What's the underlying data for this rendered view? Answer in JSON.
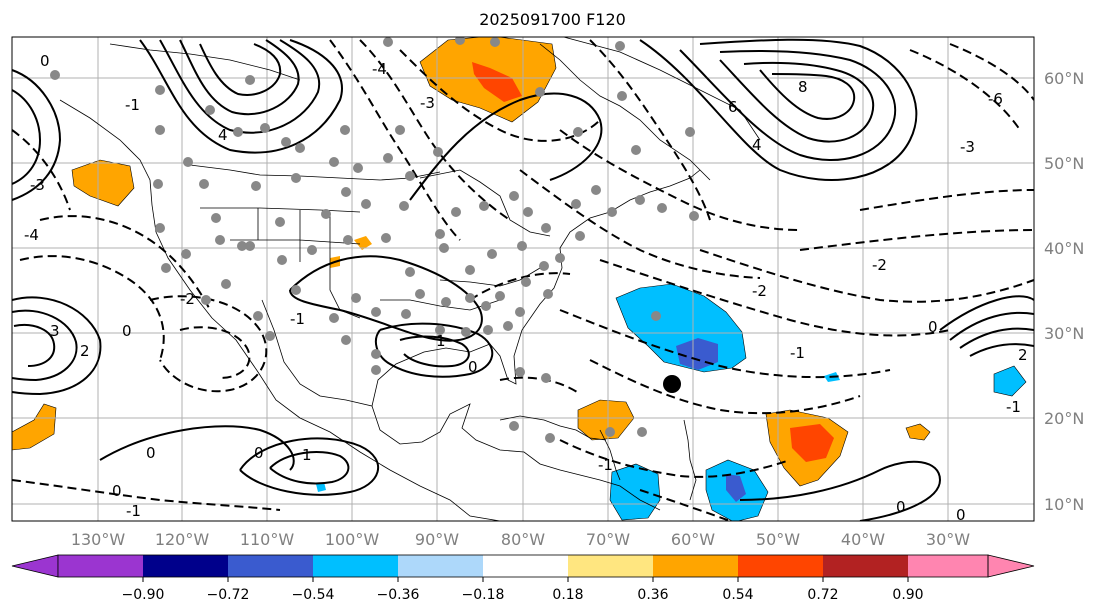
{
  "title": "2025091700 F120",
  "map": {
    "lon_labels": [
      "130°W",
      "120°W",
      "110°W",
      "100°W",
      "90°W",
      "80°W",
      "70°W",
      "60°W",
      "50°W",
      "40°W",
      "30°W"
    ],
    "lat_labels": [
      "60°N",
      "50°N",
      "40°N",
      "30°N",
      "20°N",
      "10°N"
    ],
    "gridlines": true,
    "coastlines": true,
    "station_marker_color": "#888888",
    "highlight_marker_color": "#000000",
    "line_color": "#000000"
  },
  "contour_labels": [
    "0",
    "1",
    "2",
    "3",
    "4",
    "-1",
    "-2",
    "-3",
    "-4",
    "-6",
    "8",
    "6",
    "4",
    "-1",
    "-2",
    "0",
    "1",
    "2",
    "-1",
    "0",
    "1",
    "-2",
    "-1",
    "0",
    "-1",
    "0",
    "-2",
    "-1",
    "0",
    "-1",
    "-2",
    "2",
    "1"
  ],
  "colorbar": {
    "tick_labels": [
      "−0.90",
      "−0.72",
      "−0.54",
      "−0.36",
      "−0.18",
      "0.18",
      "0.36",
      "0.54",
      "0.72",
      "0.90"
    ],
    "colors": [
      "#9b35d0",
      "#00008b",
      "#3a5bcf",
      "#00bfff",
      "#add8fa",
      "#ffffff",
      "#ffe680",
      "#ffa500",
      "#ff4500",
      "#b22222",
      "#ff85b0"
    ]
  }
}
